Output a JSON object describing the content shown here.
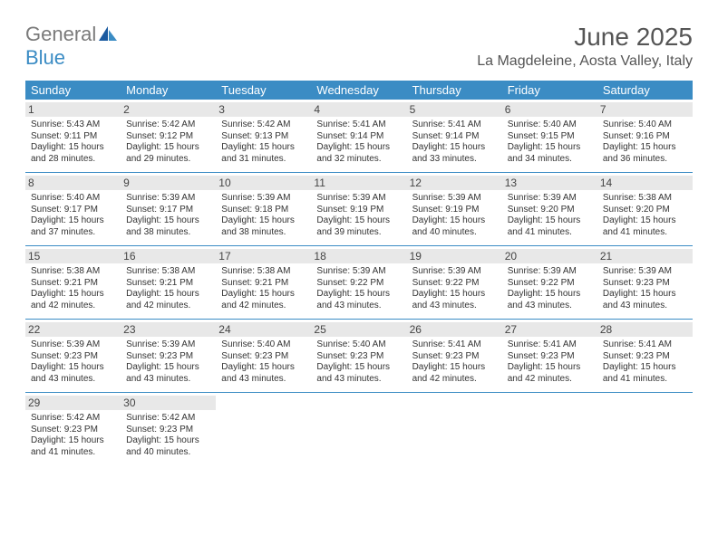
{
  "logo": {
    "part1": "General",
    "part2": "Blue"
  },
  "title": "June 2025",
  "location": "La Magdeleine, Aosta Valley, Italy",
  "colors": {
    "header_bg": "#3b8cc4",
    "date_bg": "#e8e8e8",
    "rule": "#3b8cc4",
    "text": "#333333",
    "title": "#555555"
  },
  "weekdays": [
    "Sunday",
    "Monday",
    "Tuesday",
    "Wednesday",
    "Thursday",
    "Friday",
    "Saturday"
  ],
  "days": [
    {
      "d": "1",
      "sr": "5:43 AM",
      "ss": "9:11 PM",
      "dl": "15 hours and 28 minutes."
    },
    {
      "d": "2",
      "sr": "5:42 AM",
      "ss": "9:12 PM",
      "dl": "15 hours and 29 minutes."
    },
    {
      "d": "3",
      "sr": "5:42 AM",
      "ss": "9:13 PM",
      "dl": "15 hours and 31 minutes."
    },
    {
      "d": "4",
      "sr": "5:41 AM",
      "ss": "9:14 PM",
      "dl": "15 hours and 32 minutes."
    },
    {
      "d": "5",
      "sr": "5:41 AM",
      "ss": "9:14 PM",
      "dl": "15 hours and 33 minutes."
    },
    {
      "d": "6",
      "sr": "5:40 AM",
      "ss": "9:15 PM",
      "dl": "15 hours and 34 minutes."
    },
    {
      "d": "7",
      "sr": "5:40 AM",
      "ss": "9:16 PM",
      "dl": "15 hours and 36 minutes."
    },
    {
      "d": "8",
      "sr": "5:40 AM",
      "ss": "9:17 PM",
      "dl": "15 hours and 37 minutes."
    },
    {
      "d": "9",
      "sr": "5:39 AM",
      "ss": "9:17 PM",
      "dl": "15 hours and 38 minutes."
    },
    {
      "d": "10",
      "sr": "5:39 AM",
      "ss": "9:18 PM",
      "dl": "15 hours and 38 minutes."
    },
    {
      "d": "11",
      "sr": "5:39 AM",
      "ss": "9:19 PM",
      "dl": "15 hours and 39 minutes."
    },
    {
      "d": "12",
      "sr": "5:39 AM",
      "ss": "9:19 PM",
      "dl": "15 hours and 40 minutes."
    },
    {
      "d": "13",
      "sr": "5:39 AM",
      "ss": "9:20 PM",
      "dl": "15 hours and 41 minutes."
    },
    {
      "d": "14",
      "sr": "5:38 AM",
      "ss": "9:20 PM",
      "dl": "15 hours and 41 minutes."
    },
    {
      "d": "15",
      "sr": "5:38 AM",
      "ss": "9:21 PM",
      "dl": "15 hours and 42 minutes."
    },
    {
      "d": "16",
      "sr": "5:38 AM",
      "ss": "9:21 PM",
      "dl": "15 hours and 42 minutes."
    },
    {
      "d": "17",
      "sr": "5:38 AM",
      "ss": "9:21 PM",
      "dl": "15 hours and 42 minutes."
    },
    {
      "d": "18",
      "sr": "5:39 AM",
      "ss": "9:22 PM",
      "dl": "15 hours and 43 minutes."
    },
    {
      "d": "19",
      "sr": "5:39 AM",
      "ss": "9:22 PM",
      "dl": "15 hours and 43 minutes."
    },
    {
      "d": "20",
      "sr": "5:39 AM",
      "ss": "9:22 PM",
      "dl": "15 hours and 43 minutes."
    },
    {
      "d": "21",
      "sr": "5:39 AM",
      "ss": "9:23 PM",
      "dl": "15 hours and 43 minutes."
    },
    {
      "d": "22",
      "sr": "5:39 AM",
      "ss": "9:23 PM",
      "dl": "15 hours and 43 minutes."
    },
    {
      "d": "23",
      "sr": "5:39 AM",
      "ss": "9:23 PM",
      "dl": "15 hours and 43 minutes."
    },
    {
      "d": "24",
      "sr": "5:40 AM",
      "ss": "9:23 PM",
      "dl": "15 hours and 43 minutes."
    },
    {
      "d": "25",
      "sr": "5:40 AM",
      "ss": "9:23 PM",
      "dl": "15 hours and 43 minutes."
    },
    {
      "d": "26",
      "sr": "5:41 AM",
      "ss": "9:23 PM",
      "dl": "15 hours and 42 minutes."
    },
    {
      "d": "27",
      "sr": "5:41 AM",
      "ss": "9:23 PM",
      "dl": "15 hours and 42 minutes."
    },
    {
      "d": "28",
      "sr": "5:41 AM",
      "ss": "9:23 PM",
      "dl": "15 hours and 41 minutes."
    },
    {
      "d": "29",
      "sr": "5:42 AM",
      "ss": "9:23 PM",
      "dl": "15 hours and 41 minutes."
    },
    {
      "d": "30",
      "sr": "5:42 AM",
      "ss": "9:23 PM",
      "dl": "15 hours and 40 minutes."
    }
  ],
  "labels": {
    "sunrise": "Sunrise: ",
    "sunset": "Sunset: ",
    "daylight": "Daylight: "
  }
}
